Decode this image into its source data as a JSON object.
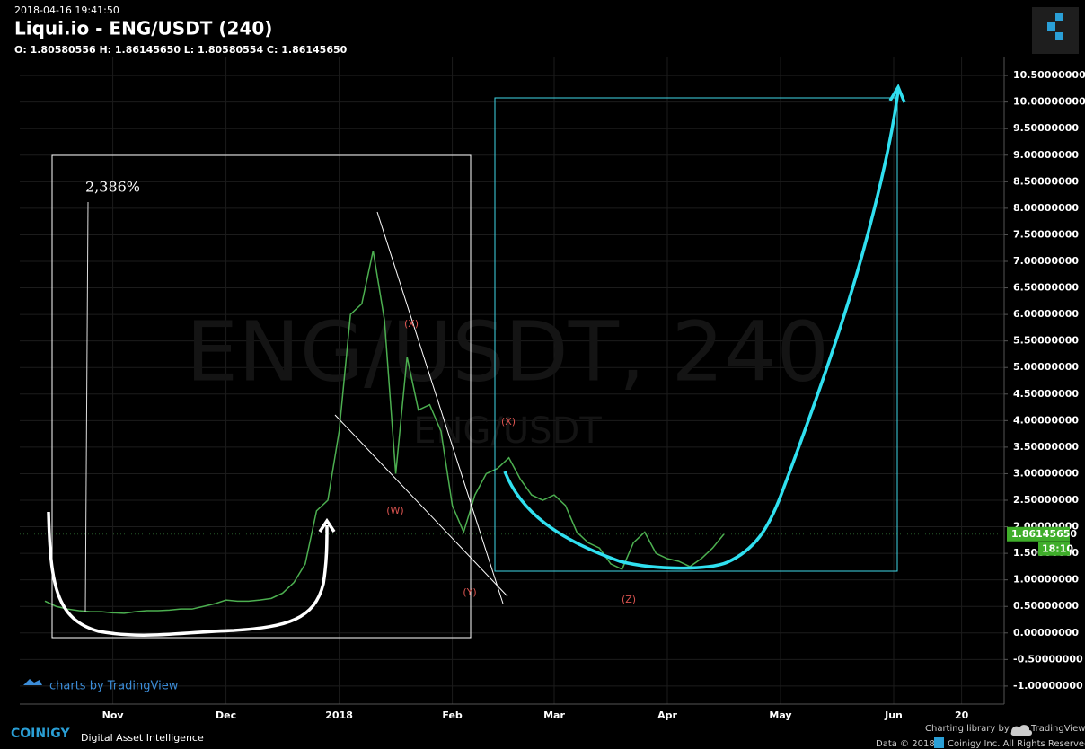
{
  "header": {
    "timestamp": "2018-04-16 19:41:50",
    "title": "Liqui.io - ENG/USDT (240)",
    "ohlc": "O: 1.80580556 H: 1.86145650 L: 1.80580554 C: 1.86145650"
  },
  "chart_data": {
    "type": "line",
    "watermark": "ENG/USDT, 240",
    "watermark_symbol": "ENG/USDT",
    "annotations": [
      "2,386%",
      "(X)",
      "(W)",
      "(Y)",
      "(X)",
      "(Z)"
    ],
    "attribution": "charts by TradingView",
    "categories": [
      null,
      null,
      null,
      null,
      null,
      null,
      "Nov",
      null,
      null,
      null,
      null,
      null,
      null,
      null,
      null,
      null,
      "Dec",
      null,
      null,
      null,
      null,
      null,
      null,
      null,
      null,
      null,
      "2018",
      null,
      null,
      null,
      null,
      null,
      null,
      null,
      null,
      null,
      "Feb",
      null,
      null,
      null,
      null,
      null,
      null,
      null,
      null,
      "Mar",
      null,
      null,
      null,
      null,
      null,
      null,
      null,
      null,
      null,
      "Apr",
      null,
      null,
      null,
      null,
      null,
      null,
      null,
      null,
      null,
      "May",
      null,
      null,
      null,
      null,
      null,
      null,
      null,
      null,
      null,
      "Jun",
      null,
      null,
      null,
      null,
      null,
      "20",
      null,
      null,
      null,
      null
    ],
    "series": [
      {
        "name": "ENG/USDT",
        "color": "#4caf50",
        "values": [
          0.6,
          0.5,
          0.45,
          0.42,
          0.4,
          0.4,
          0.38,
          0.37,
          0.4,
          0.42,
          0.42,
          0.43,
          0.45,
          0.45,
          0.5,
          0.55,
          0.62,
          0.6,
          0.6,
          0.62,
          0.65,
          0.75,
          0.95,
          1.3,
          2.3,
          2.5,
          3.8,
          6.0,
          6.2,
          7.2,
          5.9,
          3.0,
          5.2,
          4.2,
          4.3,
          3.8,
          2.4,
          1.9,
          2.6,
          3.0,
          3.1,
          3.3,
          2.9,
          2.6,
          2.5,
          2.6,
          2.4,
          1.9,
          1.7,
          1.6,
          1.3,
          1.2,
          1.7,
          1.9,
          1.5,
          1.4,
          1.35,
          1.25,
          1.4,
          1.6,
          1.8614565,
          null,
          null,
          null,
          null,
          null,
          null,
          null,
          null,
          null,
          null,
          null,
          null,
          null,
          null,
          null,
          null,
          null,
          null,
          null,
          null,
          null,
          null,
          null,
          null,
          null
        ]
      }
    ],
    "current_price": {
      "value": 1.8614565,
      "label": "1.86145650"
    },
    "countdown": "18:10",
    "ylim": [
      -1.34,
      10.84
    ],
    "yticks": [
      {
        "value": -1,
        "label": "-1.00000000"
      },
      {
        "value": -0.5,
        "label": "-0.50000000"
      },
      {
        "value": 0,
        "label": "0.00000000"
      },
      {
        "value": 0.5,
        "label": "0.50000000"
      },
      {
        "value": 1,
        "label": "1.00000000"
      },
      {
        "value": 1.5,
        "label": "1.50000000"
      },
      {
        "value": 2,
        "label": "2.00000000"
      },
      {
        "value": 2.5,
        "label": "2.50000000"
      },
      {
        "value": 3,
        "label": "3.00000000"
      },
      {
        "value": 3.5,
        "label": "3.50000000"
      },
      {
        "value": 4,
        "label": "4.00000000"
      },
      {
        "value": 4.5,
        "label": "4.50000000"
      },
      {
        "value": 5,
        "label": "5.00000000"
      },
      {
        "value": 5.5,
        "label": "5.50000000"
      },
      {
        "value": 6,
        "label": "6.00000000"
      },
      {
        "value": 6.5,
        "label": "6.50000000"
      },
      {
        "value": 7,
        "label": "7.00000000"
      },
      {
        "value": 7.5,
        "label": "7.50000000"
      },
      {
        "value": 8,
        "label": "8.00000000"
      },
      {
        "value": 8.5,
        "label": "8.50000000"
      },
      {
        "value": 9,
        "label": "9.00000000"
      },
      {
        "value": 9.5,
        "label": "9.50000000"
      },
      {
        "value": 10,
        "label": "10.00000000"
      },
      {
        "value": 10.5,
        "label": "10.50000000"
      }
    ],
    "grid": true
  },
  "footer": {
    "brand": "COINIGY",
    "tagline": "Digital Asset Intelligence",
    "library_note": "Charting library by",
    "library": "TradingView",
    "copyright": "Data © 2018",
    "rights": "Coinigy Inc. All Rights Reserved."
  }
}
